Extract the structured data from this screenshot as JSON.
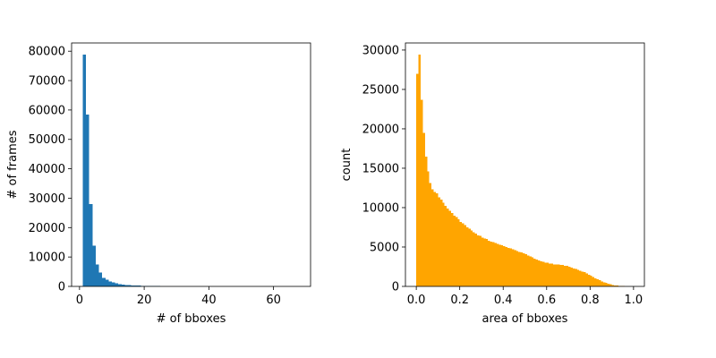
{
  "chart_data": [
    {
      "type": "bar",
      "xlabel": "# of bboxes",
      "ylabel": "# of frames",
      "xlim": [
        -2.45,
        71.45
      ],
      "ylim": [
        0,
        82800
      ],
      "xticks": [
        0,
        20,
        40,
        60
      ],
      "yticks": [
        0,
        10000,
        20000,
        30000,
        40000,
        50000,
        60000,
        70000,
        80000
      ],
      "xtick_labels": [
        "0",
        "20",
        "40",
        "60"
      ],
      "ytick_labels": [
        "0",
        "10000",
        "20000",
        "30000",
        "40000",
        "50000",
        "60000",
        "70000",
        "80000"
      ],
      "color": "#1f77b4",
      "bin_start": 1,
      "bin_width": 1,
      "values": [
        78800,
        58500,
        28000,
        13800,
        7400,
        4700,
        2900,
        2300,
        1700,
        1300,
        1000,
        800,
        650,
        520,
        430,
        350,
        290,
        240,
        200,
        170,
        140,
        110,
        90,
        80,
        70,
        60,
        50,
        40,
        35,
        30,
        25,
        20,
        18,
        16,
        14,
        12,
        10,
        9,
        8,
        7,
        6,
        5,
        5,
        4,
        4,
        3,
        3,
        3,
        2,
        2,
        2,
        2,
        1,
        1,
        1,
        1,
        1,
        1,
        1,
        1,
        1,
        1,
        1,
        1,
        1,
        1,
        1,
        1,
        1
      ],
      "grid": false
    },
    {
      "type": "bar",
      "xlabel": "area of bboxes",
      "ylabel": "count",
      "xlim": [
        -0.05,
        1.05
      ],
      "ylim": [
        0,
        30900
      ],
      "xticks": [
        0.0,
        0.2,
        0.4,
        0.6,
        0.8,
        1.0
      ],
      "yticks": [
        0,
        5000,
        10000,
        15000,
        20000,
        25000,
        30000
      ],
      "xtick_labels": [
        "0.0",
        "0.2",
        "0.4",
        "0.6",
        "0.8",
        "1.0"
      ],
      "ytick_labels": [
        "0",
        "5000",
        "10000",
        "15000",
        "20000",
        "25000",
        "30000"
      ],
      "color": "#ffa500",
      "bin_start": 0,
      "bin_width": 0.01,
      "values": [
        27000,
        29400,
        23700,
        19500,
        16500,
        14600,
        13100,
        12300,
        12000,
        11800,
        11300,
        11000,
        10600,
        10200,
        9900,
        9600,
        9300,
        9000,
        8800,
        8500,
        8200,
        8000,
        7800,
        7500,
        7300,
        7100,
        6900,
        6700,
        6500,
        6400,
        6200,
        6100,
        6000,
        5800,
        5700,
        5600,
        5500,
        5400,
        5300,
        5200,
        5100,
        5000,
        4900,
        4800,
        4700,
        4600,
        4500,
        4400,
        4300,
        4200,
        4100,
        3900,
        3800,
        3700,
        3500,
        3400,
        3300,
        3200,
        3100,
        3000,
        3000,
        2900,
        2900,
        2800,
        2800,
        2800,
        2700,
        2700,
        2600,
        2600,
        2500,
        2400,
        2300,
        2200,
        2100,
        2000,
        1900,
        1800,
        1650,
        1500,
        1350,
        1200,
        1050,
        900,
        770,
        650,
        530,
        430,
        340,
        260,
        190,
        140,
        100,
        70,
        45,
        30,
        18,
        10,
        5,
        2
      ],
      "grid": false
    }
  ]
}
